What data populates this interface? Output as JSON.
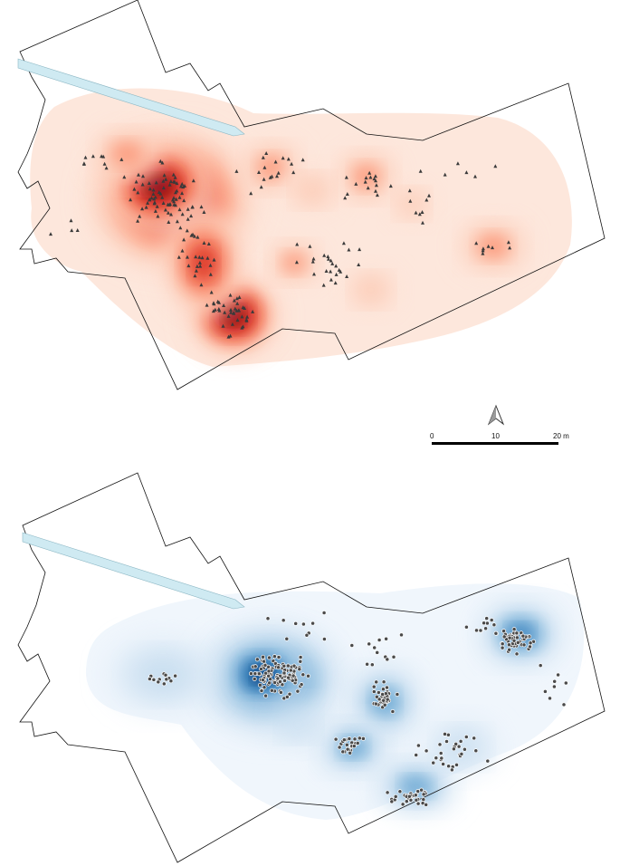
{
  "maps": [
    {
      "layer": "density-top",
      "color_ramp": [
        "#fff1ea",
        "#fde0d2",
        "#fcbba1",
        "#fb8f70",
        "#ef5d45",
        "#d3271f",
        "#a50f15",
        "#67000d"
      ],
      "point_symbol": "triangle",
      "point_color": "#3a3a3a",
      "channel_color": "#cfeaf2"
    },
    {
      "layer": "density-bottom",
      "color_ramp": [
        "#eef5fc",
        "#dbe9f6",
        "#bcd7ec",
        "#8fbfe0",
        "#5a9ccd",
        "#2c75b5",
        "#0b4f91",
        "#08306b"
      ],
      "point_symbol": "circle",
      "point_color": "#4a4a4a",
      "channel_color": "#cfeaf2"
    }
  ],
  "north_arrow": {
    "icon": "north-arrow-icon"
  },
  "scale_bar": {
    "labels": [
      "0",
      "10",
      "20 m"
    ]
  }
}
